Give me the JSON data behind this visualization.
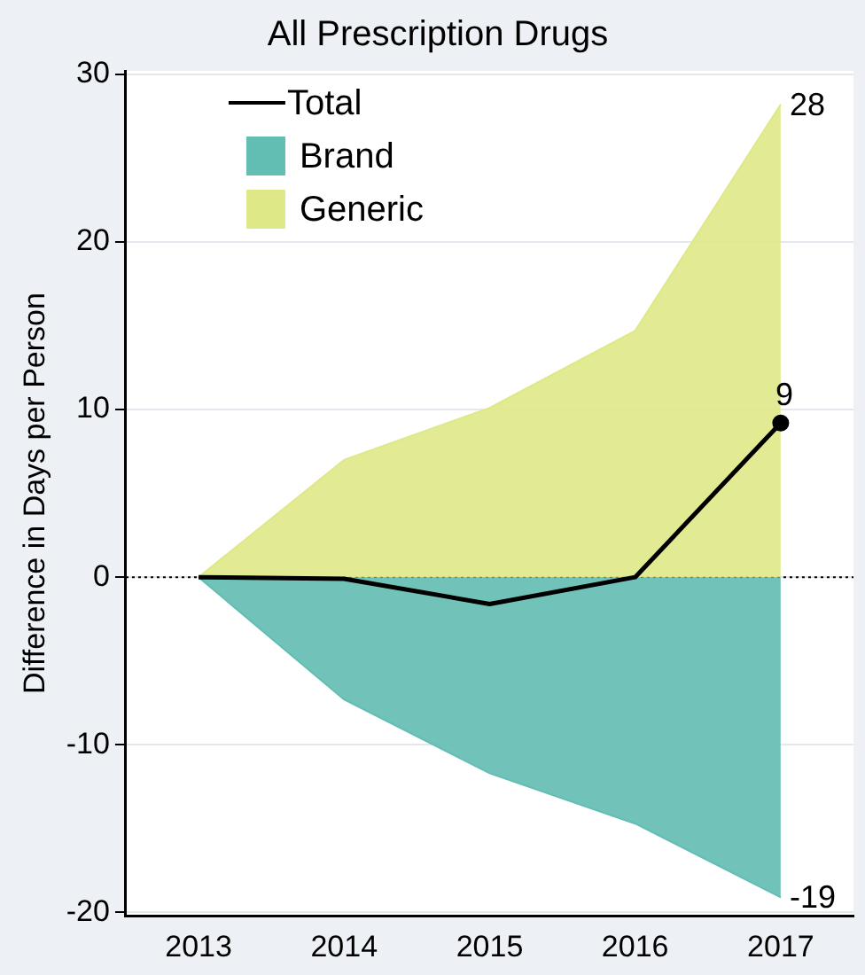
{
  "chart_data": {
    "type": "area",
    "title": "All Prescription Drugs",
    "ylabel": "Difference in Days per Person",
    "categories": [
      "2013",
      "2014",
      "2015",
      "2016",
      "2017"
    ],
    "series": [
      {
        "name": "Total",
        "type": "line",
        "color": "#000000",
        "values": [
          0,
          -0.1,
          -1.6,
          0,
          9.2
        ],
        "value_labels": [
          null,
          null,
          null,
          null,
          "9"
        ]
      },
      {
        "name": "Brand",
        "color": "#62bdb3",
        "values": [
          0,
          -7.3,
          -11.7,
          -14.7,
          -19.1
        ],
        "value_labels": [
          null,
          null,
          null,
          null,
          "-19"
        ]
      },
      {
        "name": "Generic",
        "color": "#dfe887",
        "values": [
          0,
          7,
          10.1,
          14.7,
          28.2
        ],
        "value_labels": [
          null,
          null,
          null,
          null,
          "28"
        ]
      }
    ],
    "ylim": [
      -20.2,
      30.2
    ],
    "yticks": [
      -20,
      -10,
      0,
      10,
      20,
      30
    ],
    "grid": "y",
    "legend": "top left",
    "ref_lines": [
      {
        "axis": "y",
        "value": 0,
        "line_style": "dotted",
        "color": "#000000"
      }
    ]
  }
}
